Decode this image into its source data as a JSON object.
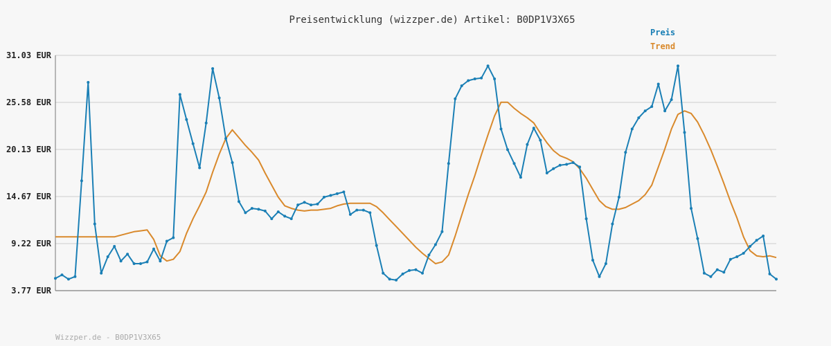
{
  "chart_data": {
    "type": "line",
    "title": "Preisentwicklung (wizzper.de) Artikel: B0DP1V3X65",
    "xlabel": "",
    "ylabel": "",
    "ylim": [
      3.77,
      31.03
    ],
    "yticks": [
      "31.03 EUR",
      "25.58 EUR",
      "20.13 EUR",
      "14.67 EUR",
      "9.22 EUR",
      "3.77 EUR"
    ],
    "ytick_values": [
      31.03,
      25.58,
      20.13,
      14.67,
      9.22,
      3.77
    ],
    "grid": true,
    "legend_placement": "top-right",
    "x": [
      1,
      2,
      3,
      4,
      5,
      6,
      7,
      8,
      9,
      10,
      11,
      12,
      13,
      14,
      15,
      16,
      17,
      18,
      19,
      20,
      21,
      22,
      23,
      24,
      25,
      26,
      27,
      28,
      29,
      30,
      31,
      32,
      33,
      34,
      35,
      36,
      37,
      38,
      39,
      40,
      41,
      42,
      43,
      44,
      45,
      46,
      47,
      48,
      49,
      50,
      51,
      52,
      53,
      54,
      55,
      56,
      57,
      58,
      59,
      60,
      61,
      62,
      63,
      64,
      65,
      66,
      67,
      68,
      69,
      70,
      71,
      72,
      73,
      74,
      75,
      76,
      77,
      78,
      79,
      80,
      81,
      82,
      83,
      84,
      85,
      86,
      87,
      88,
      89,
      90,
      91,
      92,
      93,
      94,
      95,
      96,
      97,
      98,
      99,
      100,
      101,
      102,
      103,
      104,
      105,
      106,
      107,
      108,
      109,
      110,
      111
    ],
    "series": [
      {
        "name": "Preis",
        "color": "#1a7fb5",
        "values": [
          5.2,
          5.6,
          5.1,
          5.4,
          16.5,
          27.9,
          11.5,
          5.8,
          7.7,
          8.9,
          7.2,
          8.0,
          6.9,
          6.9,
          7.1,
          8.6,
          7.2,
          9.5,
          9.9,
          26.5,
          23.6,
          20.8,
          18.0,
          23.2,
          29.5,
          26.1,
          21.4,
          18.6,
          14.1,
          12.8,
          13.3,
          13.2,
          13.0,
          12.1,
          12.9,
          12.4,
          12.1,
          13.7,
          14.0,
          13.7,
          13.8,
          14.6,
          14.8,
          15.0,
          15.2,
          12.6,
          13.1,
          13.1,
          12.8,
          9.0,
          5.8,
          5.1,
          5.0,
          5.7,
          6.1,
          6.2,
          5.8,
          7.9,
          9.1,
          10.6,
          18.5,
          26.0,
          27.5,
          28.1,
          28.3,
          28.4,
          29.8,
          28.3,
          22.5,
          20.1,
          18.5,
          16.9,
          20.7,
          22.6,
          21.2,
          17.4,
          17.9,
          18.3,
          18.4,
          18.6,
          18.1,
          12.1,
          7.3,
          5.4,
          6.9,
          11.5,
          14.6,
          19.8,
          22.5,
          23.8,
          24.6,
          25.1,
          27.7,
          24.6,
          25.9,
          29.8,
          22.1,
          13.3,
          9.8,
          5.8,
          5.4,
          6.2,
          5.9,
          7.4,
          7.7,
          8.1,
          8.9,
          9.6,
          10.1,
          5.7,
          5.1
        ]
      },
      {
        "name": "Trend",
        "color": "#d9892b",
        "values": [
          10.0,
          10.0,
          10.0,
          10.0,
          10.0,
          10.0,
          10.0,
          10.0,
          10.0,
          10.0,
          10.2,
          10.4,
          10.6,
          10.7,
          10.8,
          9.7,
          7.8,
          7.2,
          7.4,
          8.3,
          10.4,
          12.1,
          13.6,
          15.2,
          17.5,
          19.6,
          21.4,
          22.4,
          21.5,
          20.6,
          19.8,
          18.9,
          17.4,
          16.0,
          14.6,
          13.6,
          13.3,
          13.1,
          13.0,
          13.1,
          13.1,
          13.2,
          13.3,
          13.6,
          13.8,
          13.9,
          13.9,
          13.9,
          13.9,
          13.5,
          12.8,
          12.0,
          11.2,
          10.4,
          9.6,
          8.8,
          8.1,
          7.5,
          6.9,
          7.1,
          7.9,
          10.1,
          12.5,
          14.9,
          17.1,
          19.5,
          21.8,
          24.0,
          25.6,
          25.6,
          24.9,
          24.3,
          23.8,
          23.2,
          22.0,
          20.9,
          20.0,
          19.4,
          19.1,
          18.7,
          17.9,
          16.8,
          15.5,
          14.2,
          13.5,
          13.2,
          13.2,
          13.4,
          13.8,
          14.2,
          14.9,
          16.0,
          18.1,
          20.2,
          22.5,
          24.2,
          24.6,
          24.3,
          23.3,
          21.8,
          20.1,
          18.2,
          16.2,
          14.1,
          12.2,
          10.0,
          8.4,
          7.8,
          7.7,
          7.8,
          7.6
        ]
      }
    ]
  },
  "footer": "Wizzper.de - B0DP1V3X65"
}
